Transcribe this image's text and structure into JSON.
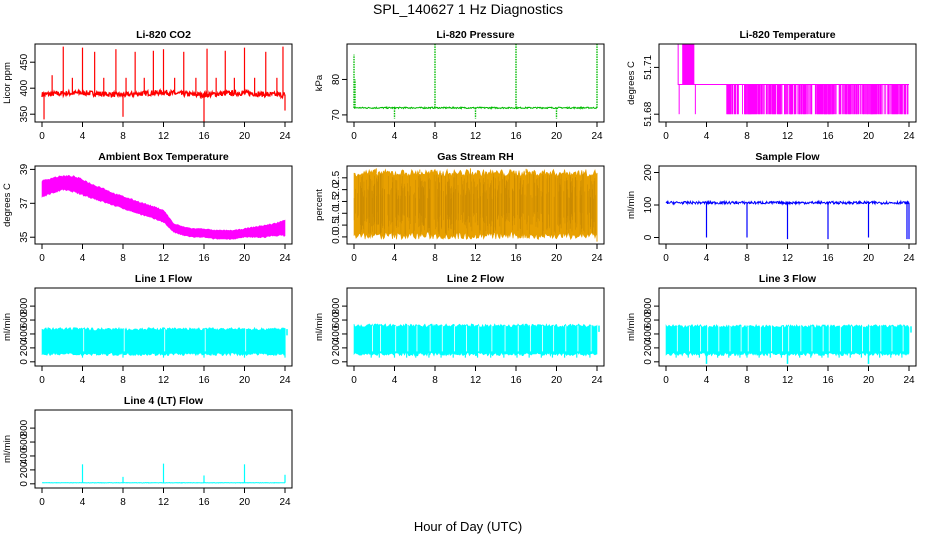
{
  "figure": {
    "title": "SPL_140627  1 Hz Diagnostics",
    "xlabel": "Hour of Day (UTC)"
  },
  "chart_data": [
    {
      "id": "co2",
      "type": "line",
      "title": "Li-820 CO2",
      "ylabel": "Licor ppm",
      "color": "#ff0000",
      "xlim": [
        0,
        24
      ],
      "ylim": [
        335,
        485
      ],
      "xticks": [
        0,
        4,
        8,
        12,
        16,
        20,
        24
      ],
      "yticks": [
        350,
        400,
        450
      ],
      "baseline": 388,
      "noise": 5,
      "x": [
        0,
        2,
        4,
        6,
        8,
        10,
        12,
        14,
        16,
        18,
        20,
        22,
        24
      ],
      "values": [
        388,
        390,
        391,
        389,
        387,
        390,
        392,
        389,
        387,
        390,
        391,
        388,
        387
      ],
      "spikes": [
        [
          0.2,
          340
        ],
        [
          1.0,
          425
        ],
        [
          2.1,
          480
        ],
        [
          3.0,
          420
        ],
        [
          4.0,
          478
        ],
        [
          5.2,
          470
        ],
        [
          6.1,
          420
        ],
        [
          7.3,
          475
        ],
        [
          8.0,
          345
        ],
        [
          8.3,
          420
        ],
        [
          9.2,
          470
        ],
        [
          10.1,
          420
        ],
        [
          11.0,
          472
        ],
        [
          12.0,
          475
        ],
        [
          13.1,
          420
        ],
        [
          14.0,
          470
        ],
        [
          15.2,
          420
        ],
        [
          16.0,
          335
        ],
        [
          16.3,
          476
        ],
        [
          17.2,
          420
        ],
        [
          18.1,
          472
        ],
        [
          19.0,
          420
        ],
        [
          20.0,
          478
        ],
        [
          21.0,
          420
        ],
        [
          22.1,
          470
        ],
        [
          23.2,
          420
        ],
        [
          23.8,
          480
        ],
        [
          24.0,
          357
        ]
      ]
    },
    {
      "id": "pressure",
      "type": "line",
      "title": "Li-820 Pressure",
      "ylabel": "kPa",
      "color": "#00bb00",
      "xlim": [
        0,
        24
      ],
      "ylim": [
        68,
        90
      ],
      "xticks": [
        0,
        4,
        8,
        12,
        16,
        20,
        24
      ],
      "yticks": [
        70,
        80
      ],
      "baseline": 72,
      "noise": 0.2,
      "x": [
        0,
        24
      ],
      "values": [
        72,
        72
      ],
      "spikes": [
        [
          0.0,
          87
        ],
        [
          0.1,
          80
        ],
        [
          4.0,
          69
        ],
        [
          8.0,
          90
        ],
        [
          12.0,
          69
        ],
        [
          16.0,
          90
        ],
        [
          20.0,
          69
        ],
        [
          24.0,
          90
        ]
      ]
    },
    {
      "id": "licor_temp",
      "type": "line",
      "title": "Li-820 Temperature",
      "ylabel": "degrees C",
      "color": "#ff00ff",
      "xlim": [
        0,
        24
      ],
      "ylim": [
        51.675,
        51.725
      ],
      "xticks": [
        0,
        4,
        8,
        12,
        16,
        20,
        24
      ],
      "yticks": [
        51.68,
        51.71
      ],
      "yticklabels": [
        "51.68",
        "51.71"
      ],
      "levels": [
        51.699,
        51.68
      ],
      "upper_level": 51.725,
      "x": [
        0,
        1.2,
        1.2,
        24
      ],
      "values": [
        51.725,
        51.725,
        51.699,
        51.699
      ],
      "block": [
        1.6,
        2.8,
        51.699,
        51.725
      ],
      "dense_ranges": [
        [
          6.0,
          24.0
        ]
      ]
    },
    {
      "id": "box_temp",
      "type": "area",
      "title": "Ambient Box Temperature",
      "ylabel": "degrees C",
      "color": "#ff00ff",
      "xlim": [
        0,
        24
      ],
      "ylim": [
        34.6,
        39.2
      ],
      "xticks": [
        0,
        4,
        8,
        12,
        16,
        20,
        24
      ],
      "yticks": [
        35,
        37,
        39
      ],
      "x": [
        0,
        1,
        2,
        3,
        4,
        5,
        6,
        7,
        8,
        9,
        10,
        11,
        12,
        13,
        14,
        15,
        16,
        17,
        18,
        19,
        20,
        21,
        22,
        23,
        24
      ],
      "lower": [
        37.4,
        37.6,
        37.8,
        37.7,
        37.5,
        37.3,
        37.1,
        36.9,
        36.7,
        36.5,
        36.3,
        36.1,
        35.9,
        35.3,
        35.1,
        35.0,
        35.0,
        34.9,
        34.9,
        34.9,
        35.0,
        35.0,
        35.0,
        35.1,
        35.1
      ],
      "upper": [
        38.3,
        38.5,
        38.6,
        38.6,
        38.4,
        38.1,
        37.9,
        37.6,
        37.4,
        37.2,
        37.0,
        36.8,
        36.6,
        35.8,
        35.6,
        35.5,
        35.5,
        35.4,
        35.4,
        35.4,
        35.5,
        35.6,
        35.7,
        35.8,
        36.0
      ]
    },
    {
      "id": "rh",
      "type": "area",
      "title": "Gas Stream RH",
      "ylabel": "percent",
      "color": "#e8a000",
      "xlim": [
        0,
        24
      ],
      "ylim": [
        -0.3,
        3.0
      ],
      "xticks": [
        0,
        4,
        8,
        12,
        16,
        20,
        24
      ],
      "yticks": [
        0.0,
        0.5,
        1.0,
        1.5,
        2.0,
        2.5
      ],
      "yticklabels": [
        "0.0",
        "0.5",
        "1.0",
        "1.5",
        "2.0",
        "2.5"
      ],
      "x": [
        0,
        24
      ],
      "lower": [
        0.05,
        0.05
      ],
      "upper": [
        2.7,
        2.7
      ],
      "spikes": [
        [
          2.2,
          2.9
        ],
        [
          6.5,
          2.85
        ],
        [
          11.5,
          2.9
        ],
        [
          17.0,
          2.88
        ],
        [
          24.0,
          -0.2
        ]
      ]
    },
    {
      "id": "sample_flow",
      "type": "line",
      "title": "Sample Flow",
      "ylabel": "ml/min",
      "color": "#0000ff",
      "xlim": [
        0,
        24
      ],
      "ylim": [
        -20,
        220
      ],
      "xticks": [
        0,
        4,
        8,
        12,
        16,
        20,
        24
      ],
      "yticks": [
        0,
        100,
        200
      ],
      "baseline": 107,
      "noise": 4,
      "x": [
        0,
        24
      ],
      "values": [
        107,
        107
      ],
      "spikes": [
        [
          4.0,
          0
        ],
        [
          8.0,
          0
        ],
        [
          12.0,
          -5
        ],
        [
          16.0,
          -5
        ],
        [
          20.0,
          0
        ],
        [
          23.8,
          -5
        ],
        [
          24.0,
          -5
        ]
      ]
    },
    {
      "id": "line1",
      "type": "area",
      "title": "Line 1 Flow",
      "ylabel": "ml/min",
      "color": "#00ffff",
      "xlim": [
        0,
        24
      ],
      "ylim": [
        -60,
        1060
      ],
      "xticks": [
        0,
        4,
        8,
        12,
        16,
        20,
        24
      ],
      "yticks": [
        0,
        200,
        400,
        600,
        800
      ],
      "x": [
        0,
        24
      ],
      "lower": [
        110,
        110
      ],
      "upper": [
        470,
        470
      ],
      "gaps": [
        4.0,
        8.0,
        12.0,
        16.0,
        20.0,
        24.0
      ],
      "gap_min": 60,
      "tail": [
        24.0,
        380
      ]
    },
    {
      "id": "line2",
      "type": "area",
      "title": "Line 2 Flow",
      "ylabel": "ml/min",
      "color": "#00ffff",
      "xlim": [
        0,
        24
      ],
      "ylim": [
        -60,
        1060
      ],
      "xticks": [
        0,
        4,
        8,
        12,
        16,
        20,
        24
      ],
      "yticks": [
        0,
        200,
        400,
        600,
        800
      ],
      "x": [
        0,
        24
      ],
      "lower": [
        110,
        110
      ],
      "upper": [
        520,
        520
      ],
      "gaps": [
        1.7,
        2.5,
        4.0,
        5.2,
        6.1,
        7.4,
        8.6,
        9.8,
        11.0,
        12.2,
        13.5,
        14.8,
        16.1,
        17.3,
        18.5,
        19.6,
        20.8,
        22.0,
        23.3
      ],
      "gap_min": 60,
      "tail": [
        24.0,
        430
      ]
    },
    {
      "id": "line3",
      "type": "area",
      "title": "Line 3 Flow",
      "ylabel": "ml/min",
      "color": "#00ffff",
      "xlim": [
        0,
        24
      ],
      "ylim": [
        -60,
        1060
      ],
      "xticks": [
        0,
        4,
        8,
        12,
        16,
        20,
        24
      ],
      "yticks": [
        0,
        200,
        400,
        600,
        800
      ],
      "x": [
        0,
        24
      ],
      "lower": [
        110,
        110
      ],
      "upper": [
        510,
        510
      ],
      "gaps": [
        1.0,
        2.2,
        3.3,
        4.0,
        5.1,
        6.2,
        7.3,
        8.0,
        9.2,
        10.3,
        11.4,
        12.0,
        13.2,
        14.3,
        15.4,
        16.0,
        17.1,
        18.2,
        19.3,
        20.0,
        21.1,
        22.2,
        23.3
      ],
      "gap_min": 60,
      "dips": [
        4.0,
        12.0,
        20.0
      ],
      "dip_min": -30,
      "tail": [
        24.0,
        420
      ]
    },
    {
      "id": "line4",
      "type": "line",
      "title": "Line 4 (LT) Flow",
      "ylabel": "ml/min",
      "color": "#00ffff",
      "xlim": [
        0,
        24
      ],
      "ylim": [
        -60,
        1060
      ],
      "xticks": [
        0,
        4,
        8,
        12,
        16,
        20,
        24
      ],
      "yticks": [
        0,
        200,
        400,
        600,
        800
      ],
      "baseline": 15,
      "noise": 3,
      "x": [
        0,
        24
      ],
      "values": [
        15,
        15
      ],
      "spikes": [
        [
          4.0,
          280
        ],
        [
          8.0,
          100
        ],
        [
          12.0,
          290
        ],
        [
          16.0,
          120
        ],
        [
          20.0,
          280
        ],
        [
          24.0,
          130
        ]
      ]
    }
  ]
}
